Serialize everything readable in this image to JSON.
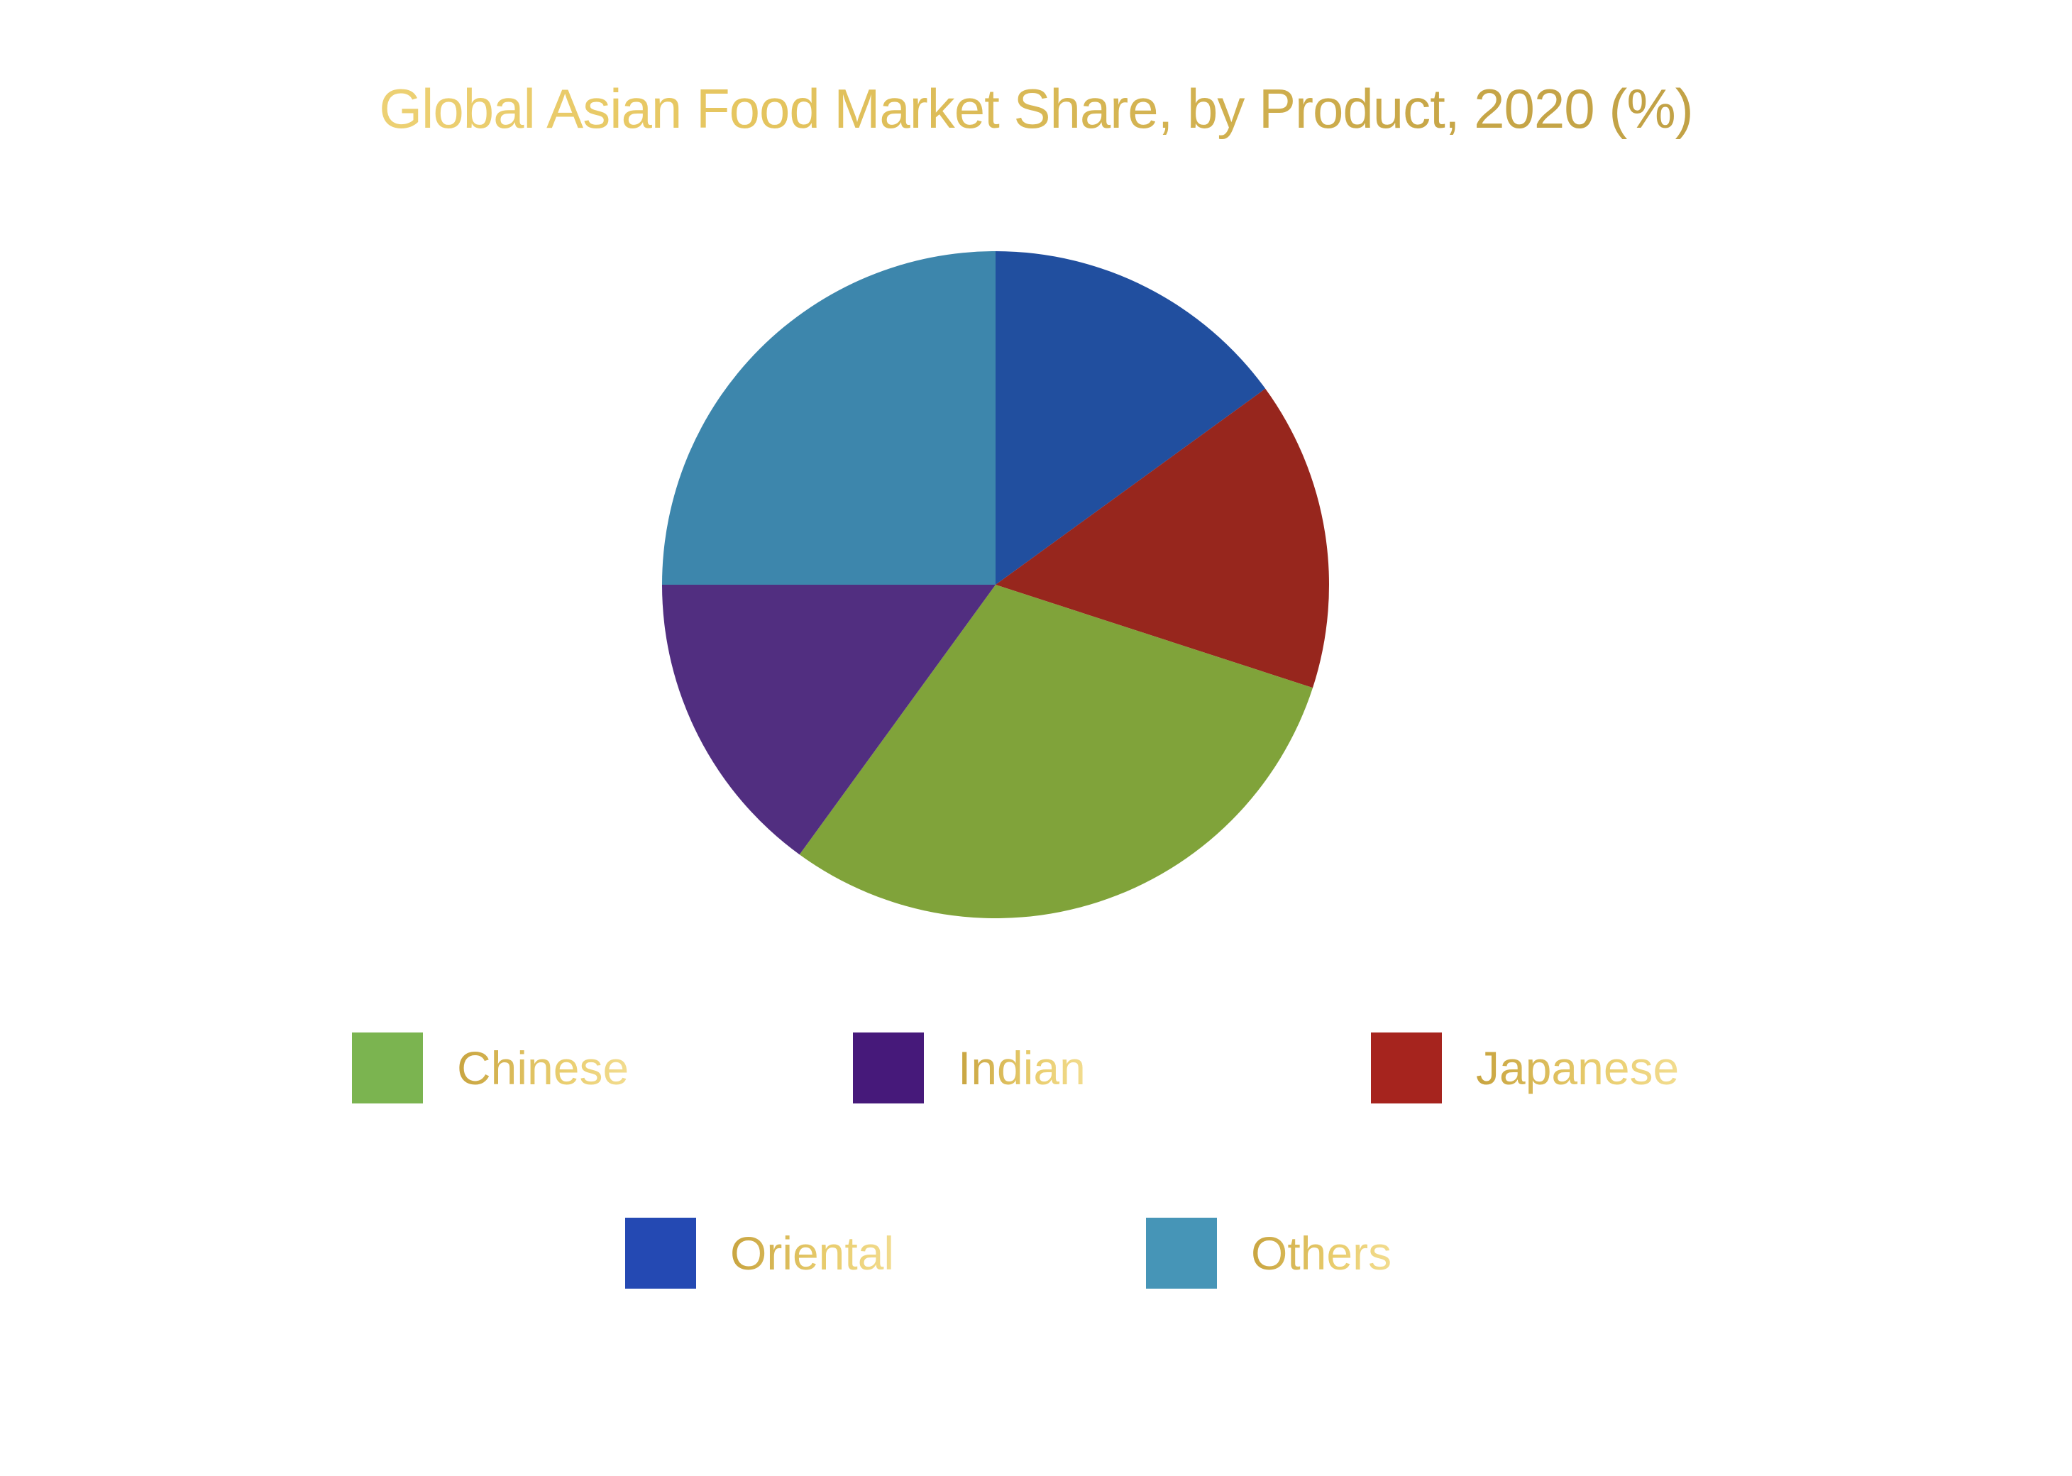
{
  "chart_data": {
    "type": "pie",
    "title": "Global Asian Food Market Share, by Product, 2020 (%)",
    "categories": [
      "Chinese",
      "Indian",
      "Japanese",
      "Oriental",
      "Others"
    ],
    "values": [
      30,
      15,
      15,
      15,
      25
    ],
    "colors": [
      "#80a33a",
      "#512e80",
      "#97261d",
      "#214f9f",
      "#3d86ac"
    ],
    "legend_colors": [
      "#7bb450",
      "#46197a",
      "#a6241e",
      "#2449b3",
      "#4695b7"
    ],
    "legend_placement": "bottom"
  }
}
